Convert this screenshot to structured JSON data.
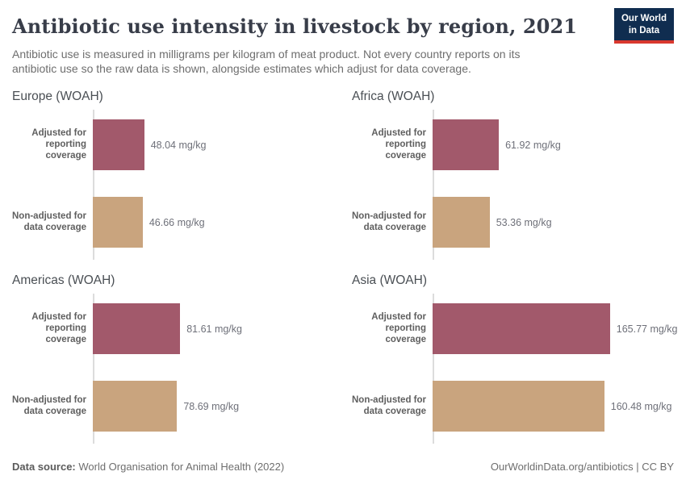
{
  "header": {
    "title": "Antibiotic use intensity in livestock by region, 2021",
    "subtitle": "Antibiotic use is measured in milligrams per kilogram of meat product. Not every country reports on its antibiotic use so the raw data is shown, alongside estimates which adjust for data coverage.",
    "logo": {
      "line1": "Our World",
      "line2": "in Data"
    }
  },
  "chart_data": {
    "type": "bar",
    "orientation": "horizontal",
    "unit": "mg/kg",
    "grid": false,
    "legend": "none",
    "xlim": [
      0,
      225
    ],
    "categories": [
      "Adjusted for reporting coverage",
      "Non-adjusted for data coverage"
    ],
    "category_lines": [
      [
        "Adjusted for",
        "reporting coverage"
      ],
      [
        "Non-adjusted for",
        "data coverage"
      ]
    ],
    "series_colors": {
      "adjusted": "#a2596b",
      "non_adjusted": "#c9a47e"
    },
    "facets": [
      {
        "title": "Europe (WOAH)",
        "values": [
          48.04,
          46.66
        ],
        "value_labels": [
          "48.04 mg/kg",
          "46.66 mg/kg"
        ]
      },
      {
        "title": "Africa (WOAH)",
        "values": [
          61.92,
          53.36
        ],
        "value_labels": [
          "61.92 mg/kg",
          "53.36 mg/kg"
        ]
      },
      {
        "title": "Americas (WOAH)",
        "values": [
          81.61,
          78.69
        ],
        "value_labels": [
          "81.61 mg/kg",
          "78.69 mg/kg"
        ]
      },
      {
        "title": "Asia (WOAH)",
        "values": [
          165.77,
          160.48
        ],
        "value_labels": [
          "165.77 mg/kg",
          "160.48 mg/kg"
        ]
      }
    ]
  },
  "footer": {
    "source_label": "Data source:",
    "source_text": " World Organisation for Animal Health (2022)",
    "right_text": "OurWorldinData.org/antibiotics | CC BY"
  }
}
